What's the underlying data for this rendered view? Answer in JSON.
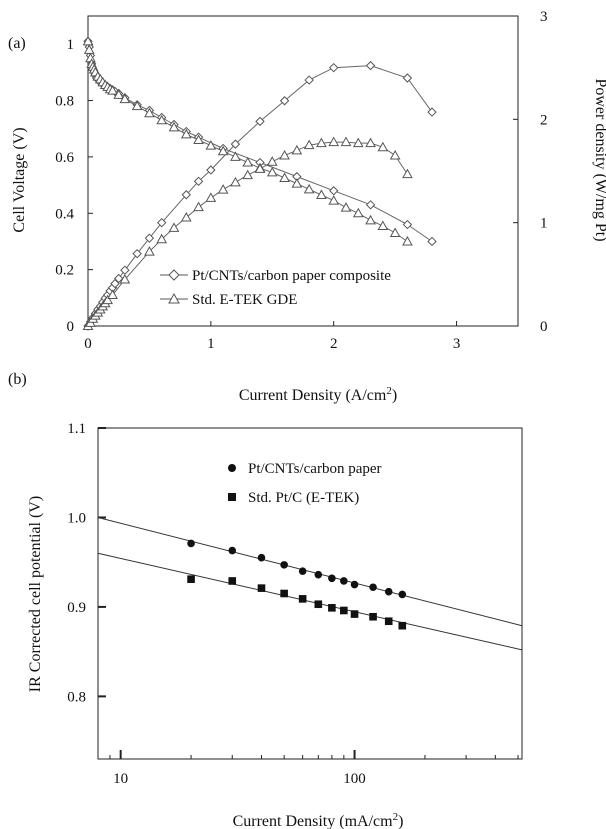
{
  "chart_data": [
    {
      "panel_label": "(a)",
      "type": "line",
      "xlabel": "Current Density (A/cm",
      "xlabel_sup": "2",
      "xlabel_tail": ")",
      "ylabel": "Cell Voltage (V)",
      "y2label": "Power density (W/mg Pt)",
      "xlim": [
        0,
        3.5
      ],
      "ylim": [
        0,
        1.1
      ],
      "y2lim": [
        0,
        3
      ],
      "xticks": [
        "0",
        "1",
        "2",
        "3"
      ],
      "yticks": [
        "0",
        "0.2",
        "0.4",
        "0.6",
        "0.8",
        "1"
      ],
      "y2ticks": [
        "0",
        "1",
        "2",
        "3"
      ],
      "legend_position": "lower-right",
      "series": [
        {
          "name": "Pt/CNTs/carbon paper composite",
          "marker": "diamond",
          "voltage": {
            "x": [
              0.0,
              0.01,
              0.02,
              0.03,
              0.04,
              0.05,
              0.06,
              0.07,
              0.08,
              0.1,
              0.12,
              0.14,
              0.16,
              0.18,
              0.2,
              0.22,
              0.25,
              0.3,
              0.4,
              0.5,
              0.6,
              0.7,
              0.8,
              0.9,
              1.1,
              1.4,
              1.7,
              2.0,
              2.3,
              2.6,
              2.8
            ],
            "y": [
              1.01,
              0.99,
              0.96,
              0.93,
              0.91,
              0.9,
              0.89,
              0.88,
              0.875,
              0.865,
              0.86,
              0.855,
              0.848,
              0.843,
              0.838,
              0.832,
              0.825,
              0.81,
              0.785,
              0.765,
              0.74,
              0.715,
              0.69,
              0.67,
              0.63,
              0.58,
              0.53,
              0.48,
              0.43,
              0.36,
              0.3
            ]
          },
          "power": {
            "x": [
              0.0,
              0.02,
              0.04,
              0.06,
              0.08,
              0.1,
              0.12,
              0.14,
              0.16,
              0.18,
              0.2,
              0.22,
              0.25,
              0.3,
              0.4,
              0.5,
              0.6,
              0.8,
              0.9,
              1.0,
              1.2,
              1.4,
              1.6,
              1.8,
              2.0,
              2.3,
              2.6,
              2.8
            ],
            "y": [
              0.0,
              0.04,
              0.08,
              0.12,
              0.16,
              0.19,
              0.23,
              0.27,
              0.3,
              0.34,
              0.37,
              0.41,
              0.46,
              0.54,
              0.7,
              0.85,
              1.0,
              1.27,
              1.4,
              1.51,
              1.76,
              1.98,
              2.18,
              2.38,
              2.5,
              2.52,
              2.4,
              2.07
            ]
          }
        },
        {
          "name": "Std. E-TEK GDE",
          "marker": "triangle",
          "voltage": {
            "x": [
              0.0,
              0.01,
              0.02,
              0.03,
              0.04,
              0.05,
              0.06,
              0.08,
              0.1,
              0.12,
              0.14,
              0.16,
              0.18,
              0.2,
              0.25,
              0.3,
              0.4,
              0.5,
              0.6,
              0.7,
              0.8,
              0.9,
              1.0,
              1.1,
              1.2,
              1.3,
              1.4,
              1.5,
              1.6,
              1.7,
              1.8,
              1.9,
              2.0,
              2.1,
              2.2,
              2.3,
              2.4,
              2.5,
              2.6
            ],
            "y": [
              1.01,
              0.98,
              0.95,
              0.93,
              0.92,
              0.91,
              0.9,
              0.885,
              0.875,
              0.865,
              0.855,
              0.848,
              0.84,
              0.835,
              0.82,
              0.805,
              0.78,
              0.755,
              0.73,
              0.705,
              0.68,
              0.66,
              0.64,
              0.62,
              0.6,
              0.58,
              0.56,
              0.545,
              0.525,
              0.505,
              0.485,
              0.465,
              0.445,
              0.42,
              0.4,
              0.375,
              0.355,
              0.33,
              0.3
            ]
          },
          "power": {
            "x": [
              0.0,
              0.02,
              0.04,
              0.06,
              0.08,
              0.1,
              0.12,
              0.14,
              0.16,
              0.2,
              0.3,
              0.5,
              0.6,
              0.7,
              0.8,
              0.9,
              1.0,
              1.1,
              1.2,
              1.3,
              1.4,
              1.5,
              1.6,
              1.7,
              1.8,
              1.9,
              2.0,
              2.1,
              2.2,
              2.3,
              2.4,
              2.5,
              2.6
            ],
            "y": [
              0.0,
              0.03,
              0.07,
              0.1,
              0.13,
              0.16,
              0.19,
              0.22,
              0.25,
              0.3,
              0.45,
              0.72,
              0.84,
              0.95,
              1.05,
              1.15,
              1.24,
              1.32,
              1.39,
              1.46,
              1.52,
              1.59,
              1.65,
              1.7,
              1.75,
              1.77,
              1.78,
              1.78,
              1.77,
              1.77,
              1.73,
              1.65,
              1.47
            ]
          }
        }
      ]
    },
    {
      "panel_label": "(b)",
      "type": "scatter",
      "xlabel": "Current Density (mA/cm",
      "xlabel_sup": "2",
      "xlabel_tail": ")",
      "ylabel": "IR Corrected cell potential (V)",
      "x_scale": "log",
      "xlim": [
        8,
        520
      ],
      "ylim": [
        0.73,
        1.1
      ],
      "xticks": [
        "10",
        "100"
      ],
      "yticks": [
        "0.8",
        "0.9",
        "1.0",
        "1.1"
      ],
      "legend_position": "top-center",
      "series": [
        {
          "name": "Pt/CNTs/carbon paper",
          "marker": "circle",
          "x": [
            20,
            30,
            40,
            50,
            60,
            70,
            80,
            90,
            100,
            120,
            140,
            160
          ],
          "y": [
            0.971,
            0.963,
            0.955,
            0.947,
            0.94,
            0.936,
            0.932,
            0.929,
            0.925,
            0.922,
            0.917,
            0.914
          ],
          "fit_line": {
            "x": [
              8,
              520
            ],
            "y": [
              1.0,
              0.879
            ]
          }
        },
        {
          "name": "Std. Pt/C (E-TEK)",
          "marker": "square",
          "x": [
            20,
            30,
            40,
            50,
            60,
            70,
            80,
            90,
            100,
            120,
            140,
            160
          ],
          "y": [
            0.931,
            0.929,
            0.921,
            0.915,
            0.909,
            0.903,
            0.899,
            0.896,
            0.892,
            0.889,
            0.884,
            0.879
          ],
          "fit_line": {
            "x": [
              8,
              520
            ],
            "y": [
              0.96,
              0.852
            ]
          }
        }
      ]
    }
  ]
}
